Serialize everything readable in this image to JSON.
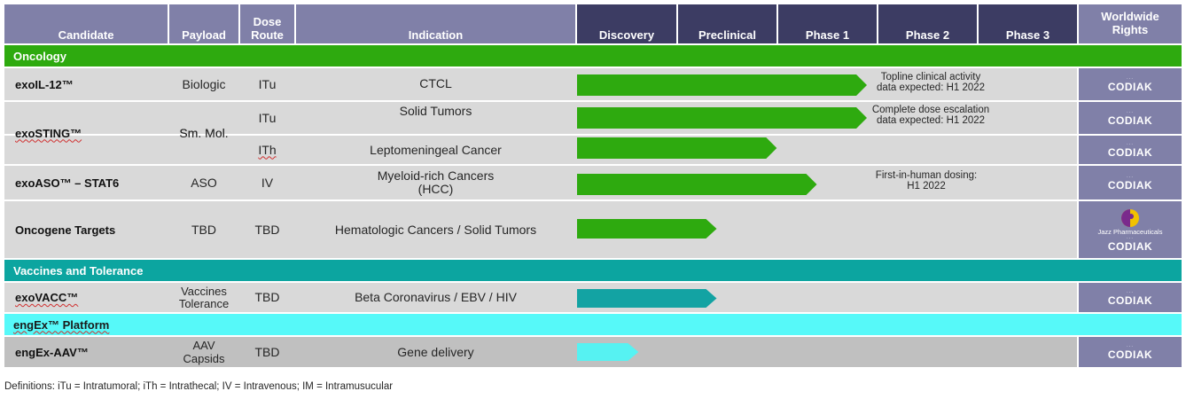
{
  "header": {
    "candidate": "Candidate",
    "payload": "Payload",
    "dose_route": "Dose\nRoute",
    "indication": "Indication",
    "stages": [
      "Discovery",
      "Preclinical",
      "Phase 1",
      "Phase 2",
      "Phase 3"
    ],
    "rights": "Worldwide\nRights"
  },
  "categories": {
    "oncology": "Oncology",
    "vaccines": "Vaccines and Tolerance",
    "platform": "engEx™ Platform"
  },
  "rows": [
    {
      "candidate": "exoIL-12™",
      "payload": "Biologic",
      "route": "ITu",
      "indication": "CTCL",
      "note": "Topline clinical activity\ndata expected: H1 2022",
      "progress_stage": 3.0,
      "color": "#2eaa0f",
      "rights": "CODIAK"
    },
    {
      "candidate": "exoSTING™",
      "payload": "Sm. Mol.",
      "route": "ITu",
      "indication": "Solid Tumors",
      "note": "Complete dose escalation\ndata expected: H1 2022",
      "progress_stage": 3.0,
      "color": "#2eaa0f",
      "rights": "CODIAK"
    },
    {
      "candidate": "",
      "payload": "",
      "route": "ITh",
      "indication": "Leptomeningeal Cancer",
      "note": "",
      "progress_stage": 2.1,
      "color": "#2eaa0f",
      "rights": "CODIAK"
    },
    {
      "candidate": "exoASO™ – STAT6",
      "payload": "ASO",
      "route": "IV",
      "indication": "Myeloid-rich Cancers\n(HCC)",
      "note": "First-in-human dosing:\nH1 2022",
      "progress_stage": 2.5,
      "color": "#2eaa0f",
      "rights": "CODIAK"
    },
    {
      "candidate": "Oncogene Targets",
      "payload": "TBD",
      "route": "TBD",
      "indication": "Hematologic Cancers / Solid Tumors",
      "note": "",
      "progress_stage": 1.5,
      "color": "#2eaa0f",
      "rights": "CODIAK",
      "partner": "Jazz Pharmaceuticals"
    },
    {
      "candidate": "exoVACC™",
      "payload": "Vaccines\nTolerance",
      "route": "TBD",
      "indication": "Beta Coronavirus / EBV / HIV",
      "note": "",
      "progress_stage": 1.5,
      "color": "#13a3a3",
      "rights": "CODIAK"
    },
    {
      "candidate": "engEx-AAV™",
      "payload": "AAV\nCapsids",
      "route": "TBD",
      "indication": "Gene delivery",
      "note": "",
      "progress_stage": 0.72,
      "color": "#56f2f2",
      "rights": "CODIAK"
    }
  ],
  "colors": {
    "oncology": "#2eaa0f",
    "vaccines": "#0ca5a0",
    "platform": "#56f9f9",
    "header_left": "#8080a8",
    "header_stage": "#3c3c63"
  },
  "footer": {
    "definitions": "Definitions: iTu = Intratumoral; iTh = Intrathecal; IV = Intravenous; IM =  Intramusucular"
  }
}
